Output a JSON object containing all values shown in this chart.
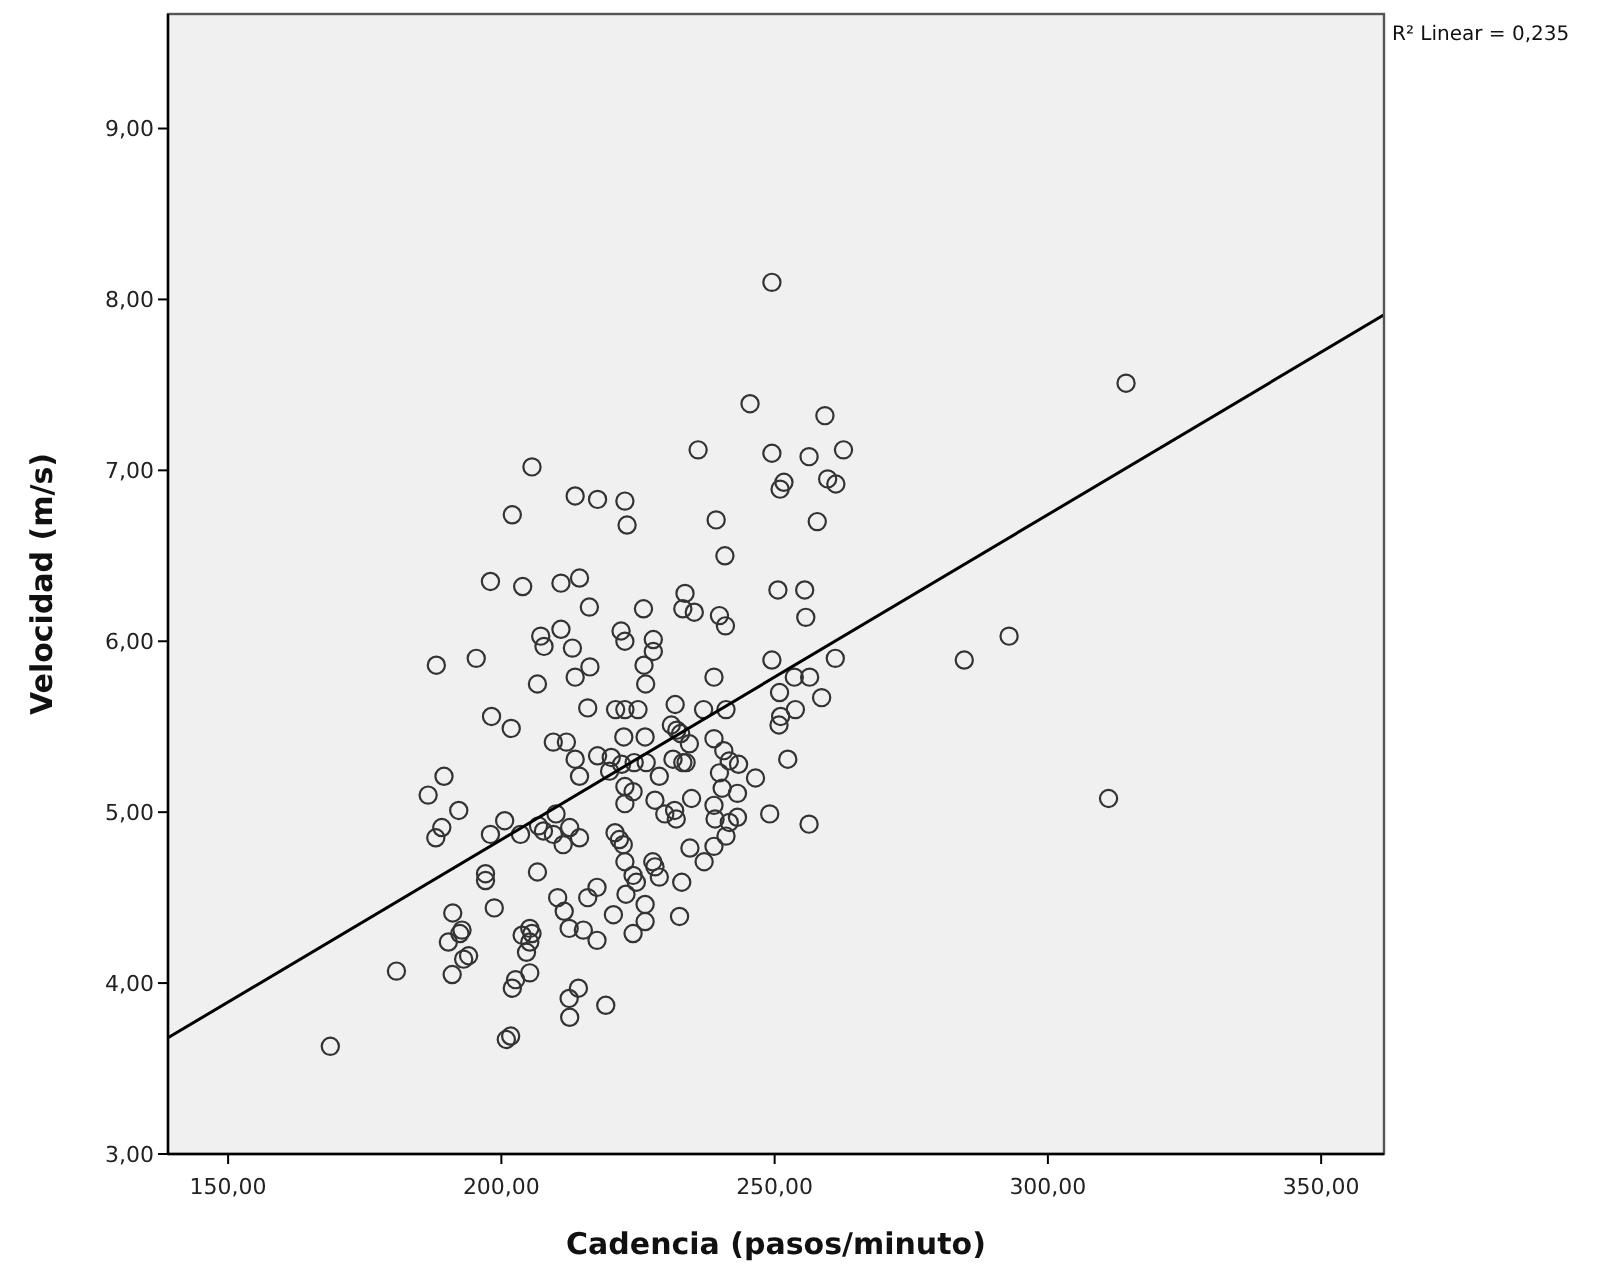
{
  "chart_data": {
    "type": "scatter",
    "xlabel": "Cadencia (pasos/minuto)",
    "ylabel": "Velocidad (m/s)",
    "annotations": [
      "R² Linear = 0,235"
    ],
    "xlim": [
      139,
      361.5
    ],
    "ylim": [
      3,
      9.67
    ],
    "xticks": [
      {
        "value": 150,
        "label": "150,00"
      },
      {
        "value": 200,
        "label": "200,00"
      },
      {
        "value": 250,
        "label": "250,00"
      },
      {
        "value": 300,
        "label": "300,00"
      },
      {
        "value": 350,
        "label": "350,00"
      }
    ],
    "yticks": [
      {
        "value": 3,
        "label": "3,00"
      },
      {
        "value": 4,
        "label": "4,00"
      },
      {
        "value": 5,
        "label": "5,00"
      },
      {
        "value": 6,
        "label": "6,00"
      },
      {
        "value": 7,
        "label": "7,00"
      },
      {
        "value": 8,
        "label": "8,00"
      },
      {
        "value": 9,
        "label": "9,00"
      }
    ],
    "grid": false,
    "series": [
      {
        "marker": "circle",
        "color": "#333333",
        "x": [
          249.5,
          245.5,
          259.2,
          236.0,
          249.5,
          256.3,
          262.6,
          205.6,
          213.5,
          217.6,
          222.6,
          223.0,
          202.0,
          251.7,
          251.0,
          259.7,
          261.2,
          239.3,
          257.8,
          240.9,
          198.0,
          203.9,
          210.9,
          214.3,
          250.6,
          255.5,
          216.1,
          226.0,
          233.6,
          233.2,
          235.3,
          239.9,
          241.0,
          255.7,
          210.9,
          207.2,
          207.8,
          213.0,
          221.9,
          222.6,
          227.8,
          227.8,
          226.1,
          226.4,
          216.2,
          213.5,
          206.6,
          188.1,
          195.4,
          249.5,
          261.1,
          253.6,
          256.4,
          250.9,
          258.6,
          238.9,
          231.8,
          215.8,
          284.7,
          292.9,
          314.3,
          311.1,
          198.2,
          220.9,
          222.6,
          225.0,
          237.0,
          241.1,
          251.1,
          253.8,
          250.8,
          201.8,
          209.5,
          211.9,
          213.5,
          217.6,
          220.1,
          222.4,
          226.3,
          231.1,
          232.1,
          232.8,
          234.4,
          238.9,
          240.7,
          241.7,
          243.4,
          246.5,
          252.4,
          214.3,
          222.0,
          224.3,
          226.5,
          219.8,
          222.6,
          224.1,
          222.6,
          228.9,
          231.4,
          233.2,
          233.8,
          239.9,
          240.4,
          243.2,
          228.1,
          229.9,
          231.7,
          232.0,
          234.8,
          238.9,
          239.1,
          241.7,
          243.2,
          241.1,
          238.9,
          237.1,
          234.5,
          249.1,
          256.3,
          186.6,
          189.5,
          192.2,
          189.1,
          188.0,
          198.0,
          200.6,
          203.5,
          206.8,
          207.7,
          209.5,
          210.0,
          212.5,
          211.3,
          214.3,
          220.8,
          221.6,
          222.3,
          222.6,
          224.1,
          224.7,
          227.7,
          228.1,
          228.9,
          222.8,
          226.3,
          226.3,
          224.1,
          220.5,
          233.0,
          232.6,
          217.5,
          215.8,
          210.3,
          211.5,
          212.4,
          215.0,
          217.5,
          206.6,
          197.1,
          197.1,
          198.7,
          191.1,
          192.8,
          192.4,
          190.3,
          194.0,
          193.1,
          191.0,
          180.8,
          205.2,
          205.6,
          203.8,
          205.2,
          204.6,
          205.2,
          202.6,
          202.0,
          214.1,
          212.4,
          212.5,
          219.1,
          200.9,
          201.7,
          168.7
        ],
        "values": [
          8.1,
          7.39,
          7.32,
          7.12,
          7.1,
          7.08,
          7.12,
          7.02,
          6.85,
          6.83,
          6.82,
          6.68,
          6.74,
          6.93,
          6.89,
          6.95,
          6.92,
          6.71,
          6.7,
          6.5,
          6.35,
          6.32,
          6.34,
          6.37,
          6.3,
          6.3,
          6.2,
          6.19,
          6.28,
          6.19,
          6.17,
          6.15,
          6.09,
          6.14,
          6.07,
          6.03,
          5.97,
          5.96,
          6.06,
          6.0,
          6.01,
          5.94,
          5.86,
          5.75,
          5.85,
          5.79,
          5.75,
          5.86,
          5.9,
          5.89,
          5.9,
          5.79,
          5.79,
          5.7,
          5.67,
          5.79,
          5.63,
          5.61,
          5.89,
          6.03,
          7.51,
          5.08,
          5.56,
          5.6,
          5.6,
          5.6,
          5.6,
          5.6,
          5.56,
          5.6,
          5.51,
          5.49,
          5.41,
          5.41,
          5.31,
          5.33,
          5.32,
          5.44,
          5.44,
          5.51,
          5.48,
          5.46,
          5.4,
          5.43,
          5.36,
          5.3,
          5.28,
          5.2,
          5.31,
          5.21,
          5.28,
          5.29,
          5.29,
          5.24,
          5.15,
          5.12,
          5.05,
          5.21,
          5.31,
          5.29,
          5.29,
          5.23,
          5.14,
          5.11,
          5.07,
          4.99,
          5.01,
          4.96,
          5.08,
          5.04,
          4.96,
          4.94,
          4.97,
          4.86,
          4.8,
          4.71,
          4.79,
          4.99,
          4.93,
          5.1,
          5.21,
          5.01,
          4.91,
          4.85,
          4.87,
          4.95,
          4.87,
          4.92,
          4.89,
          4.87,
          4.99,
          4.91,
          4.81,
          4.85,
          4.88,
          4.84,
          4.81,
          4.71,
          4.63,
          4.59,
          4.71,
          4.68,
          4.62,
          4.52,
          4.46,
          4.36,
          4.29,
          4.4,
          4.59,
          4.39,
          4.56,
          4.5,
          4.5,
          4.42,
          4.32,
          4.31,
          4.25,
          4.65,
          4.64,
          4.6,
          4.44,
          4.41,
          4.31,
          4.29,
          4.24,
          4.16,
          4.14,
          4.05,
          4.07,
          4.32,
          4.29,
          4.28,
          4.24,
          4.18,
          4.06,
          4.02,
          3.97,
          3.97,
          3.91,
          3.8,
          3.87,
          3.67,
          3.69,
          3.63
        ]
      },
      {
        "type": "line",
        "marker": "none",
        "color": "#000000",
        "x": [
          139,
          361.5
        ],
        "values": [
          3.68,
          7.91
        ]
      }
    ]
  }
}
